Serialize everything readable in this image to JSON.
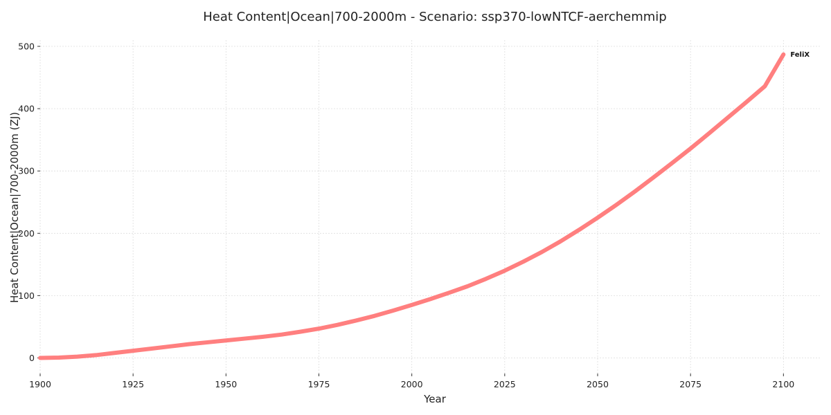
{
  "chart_data": {
    "type": "line",
    "title": "Heat Content|Ocean|700-2000m - Scenario: ssp370-lowNTCF-aerchemmip",
    "xlabel": "Year",
    "ylabel": "Heat Content|Ocean|700-2000m (ZJ)",
    "xlim": [
      1900,
      2110
    ],
    "ylim": [
      -25,
      510
    ],
    "x_ticks": [
      1900,
      1925,
      1950,
      1975,
      2000,
      2025,
      2050,
      2075,
      2100
    ],
    "y_ticks": [
      0,
      100,
      200,
      300,
      400,
      500
    ],
    "grid": true,
    "series": [
      {
        "name": "FeliX",
        "color": "#ff7f7f",
        "x": [
          1900,
          1905,
          1910,
          1915,
          1920,
          1925,
          1930,
          1935,
          1940,
          1945,
          1950,
          1955,
          1960,
          1965,
          1970,
          1975,
          1980,
          1985,
          1990,
          1995,
          2000,
          2005,
          2010,
          2015,
          2020,
          2025,
          2030,
          2035,
          2040,
          2045,
          2050,
          2055,
          2060,
          2065,
          2070,
          2075,
          2080,
          2085,
          2090,
          2095,
          2100
        ],
        "values": [
          0,
          0.5,
          2,
          4.5,
          8,
          11.5,
          15,
          18.5,
          22,
          25,
          28,
          31,
          34,
          37.5,
          42,
          47,
          53,
          60,
          67.5,
          76,
          85,
          94.5,
          104.5,
          115,
          127,
          140,
          154.5,
          170,
          187,
          205.5,
          225,
          245.5,
          267,
          289.5,
          312.5,
          336,
          360.5,
          385.5,
          410.5,
          436,
          487
        ]
      }
    ]
  }
}
